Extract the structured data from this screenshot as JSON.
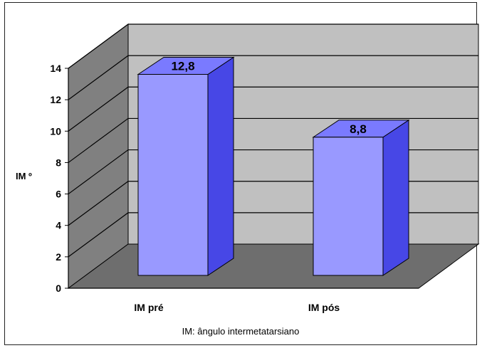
{
  "chart_data": {
    "type": "bar",
    "categories": [
      "IM pré",
      "IM pós"
    ],
    "values": [
      12.8,
      8.8
    ],
    "value_labels": [
      "12,8",
      "8,8"
    ],
    "ylabel": "IM º",
    "ylim": [
      0,
      14
    ],
    "yticks": [
      0,
      2,
      4,
      6,
      8,
      10,
      12,
      14
    ],
    "grid": true,
    "three_d": true,
    "footnote": "IM: ângulo intermetatarsiano",
    "colors": {
      "bar_front": "#9999ff",
      "bar_side": "#4747e6",
      "bar_top": "#7a7aff",
      "back_wall": "#c0c0c0",
      "side_wall": "#808080",
      "floor": "#6e6e6e"
    }
  }
}
